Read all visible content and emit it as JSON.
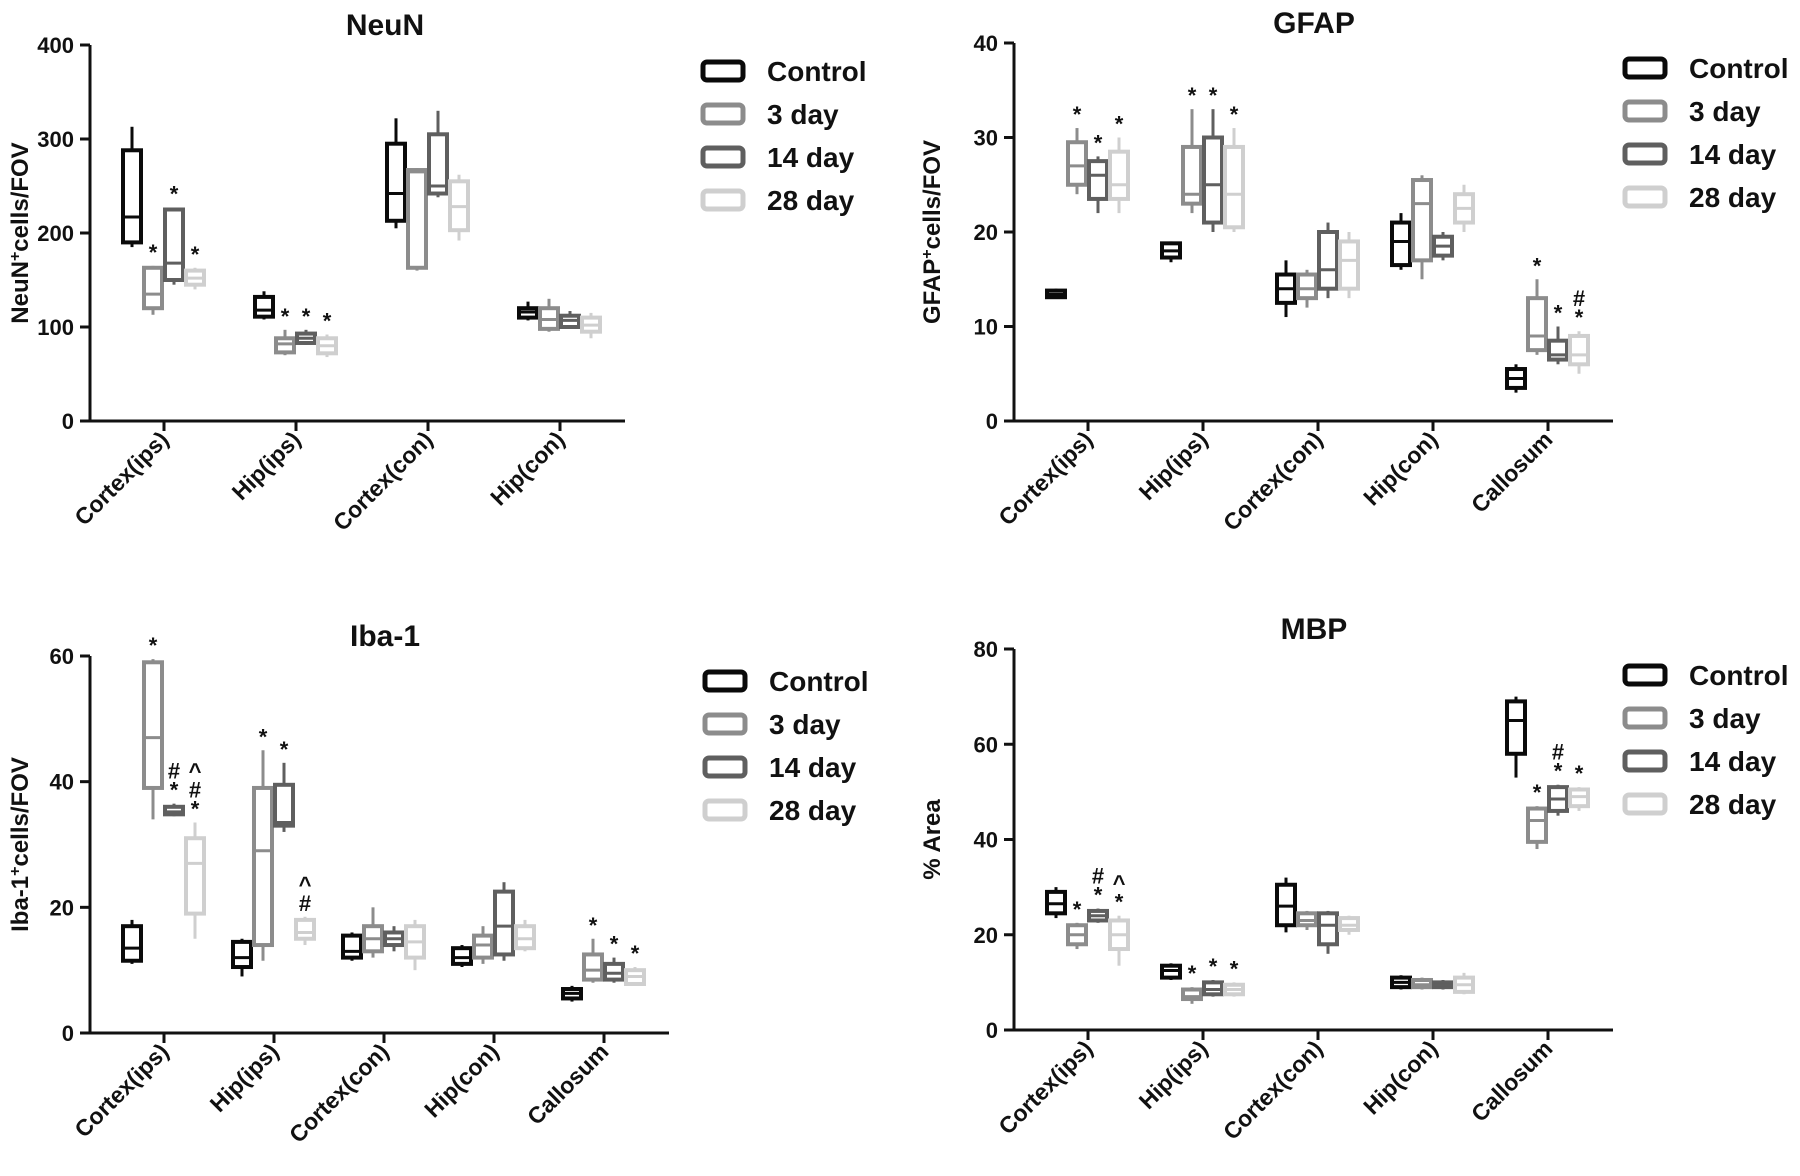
{
  "legend_labels": [
    "Control",
    "3 day",
    "14 day",
    "28 day"
  ],
  "series_colors": [
    "#0a0a0a",
    "#8c8c8c",
    "#5f5f5f",
    "#cfcfcf"
  ],
  "chart_data": [
    {
      "type": "box",
      "title": "NeuN",
      "ylabel_main": "NeuN",
      "ylabel_sup": "+",
      "ylabel_rest": "cells/FOV",
      "ylim": [
        0,
        400
      ],
      "yticks": [
        0,
        100,
        200,
        300,
        400
      ],
      "categories": [
        "Cortex(ips)",
        "Hip(ips)",
        "Cortex(con)",
        "Hip(con)"
      ],
      "legend_position": "top-right",
      "series": [
        {
          "name": "Control",
          "boxes": [
            {
              "min": 185,
              "q1": 190,
              "median": 217,
              "q3": 288,
              "max": 313,
              "annot": []
            },
            {
              "min": 108,
              "q1": 111,
              "median": 118,
              "q3": 132,
              "max": 138,
              "annot": []
            },
            {
              "min": 205,
              "q1": 213,
              "median": 242,
              "q3": 295,
              "max": 322,
              "annot": []
            },
            {
              "min": 107,
              "q1": 110,
              "median": 116,
              "q3": 120,
              "max": 127,
              "annot": []
            }
          ]
        },
        {
          "name": "3 day",
          "boxes": [
            {
              "min": 113,
              "q1": 120,
              "median": 135,
              "q3": 163,
              "max": 165,
              "annot": [
                "*"
              ]
            },
            {
              "min": 70,
              "q1": 73,
              "median": 82,
              "q3": 88,
              "max": 97,
              "annot": [
                "*"
              ]
            },
            {
              "min": 160,
              "q1": 163,
              "median": 265,
              "q3": 267,
              "max": 269,
              "annot": []
            },
            {
              "min": 95,
              "q1": 98,
              "median": 108,
              "q3": 120,
              "max": 130,
              "annot": []
            }
          ]
        },
        {
          "name": "14 day",
          "boxes": [
            {
              "min": 145,
              "q1": 150,
              "median": 168,
              "q3": 225,
              "max": 227,
              "annot": [
                "*"
              ]
            },
            {
              "min": 81,
              "q1": 83,
              "median": 88,
              "q3": 93,
              "max": 97,
              "annot": [
                "*"
              ]
            },
            {
              "min": 238,
              "q1": 242,
              "median": 250,
              "q3": 305,
              "max": 330,
              "annot": []
            },
            {
              "min": 98,
              "q1": 100,
              "median": 107,
              "q3": 112,
              "max": 117,
              "annot": []
            }
          ]
        },
        {
          "name": "28 day",
          "boxes": [
            {
              "min": 140,
              "q1": 145,
              "median": 152,
              "q3": 160,
              "max": 163,
              "annot": [
                "*"
              ]
            },
            {
              "min": 68,
              "q1": 72,
              "median": 80,
              "q3": 88,
              "max": 92,
              "annot": [
                "*"
              ]
            },
            {
              "min": 192,
              "q1": 203,
              "median": 228,
              "q3": 255,
              "max": 262,
              "annot": []
            },
            {
              "min": 88,
              "q1": 95,
              "median": 102,
              "q3": 110,
              "max": 115,
              "annot": []
            }
          ]
        }
      ]
    },
    {
      "type": "box",
      "title": "GFAP",
      "ylabel_main": "GFAP",
      "ylabel_sup": "+",
      "ylabel_rest": "cells/FOV",
      "ylim": [
        0,
        40
      ],
      "yticks": [
        0,
        10,
        20,
        30,
        40
      ],
      "categories": [
        "Cortex(ips)",
        "Hip(ips)",
        "Cortex(con)",
        "Hip(con)",
        "Callosum"
      ],
      "legend_position": "top-right",
      "series": [
        {
          "name": "Control",
          "boxes": [
            {
              "min": 13,
              "q1": 13.1,
              "median": 13.4,
              "q3": 13.8,
              "max": 14,
              "annot": []
            },
            {
              "min": 16.8,
              "q1": 17.3,
              "median": 18,
              "q3": 18.8,
              "max": 19,
              "annot": []
            },
            {
              "min": 11,
              "q1": 12.5,
              "median": 14,
              "q3": 15.5,
              "max": 17,
              "annot": []
            },
            {
              "min": 16,
              "q1": 16.5,
              "median": 19,
              "q3": 21,
              "max": 22,
              "annot": []
            },
            {
              "min": 3,
              "q1": 3.5,
              "median": 4.5,
              "q3": 5.5,
              "max": 6,
              "annot": []
            }
          ]
        },
        {
          "name": "3 day",
          "boxes": [
            {
              "min": 24,
              "q1": 25,
              "median": 27,
              "q3": 29.5,
              "max": 31,
              "annot": [
                "*"
              ]
            },
            {
              "min": 22,
              "q1": 23,
              "median": 24,
              "q3": 29,
              "max": 33,
              "annot": [
                "*"
              ]
            },
            {
              "min": 12,
              "q1": 13,
              "median": 14,
              "q3": 15.5,
              "max": 16,
              "annot": []
            },
            {
              "min": 15,
              "q1": 17,
              "median": 23,
              "q3": 25.5,
              "max": 26,
              "annot": []
            },
            {
              "min": 7,
              "q1": 7.5,
              "median": 9,
              "q3": 13,
              "max": 15,
              "annot": [
                "*"
              ]
            }
          ]
        },
        {
          "name": "14 day",
          "boxes": [
            {
              "min": 22,
              "q1": 23.5,
              "median": 26,
              "q3": 27.5,
              "max": 28,
              "annot": [
                "*"
              ]
            },
            {
              "min": 20,
              "q1": 21,
              "median": 25,
              "q3": 30,
              "max": 33,
              "annot": [
                "*"
              ]
            },
            {
              "min": 13,
              "q1": 14,
              "median": 16,
              "q3": 20,
              "max": 21,
              "annot": []
            },
            {
              "min": 17,
              "q1": 17.5,
              "median": 18.5,
              "q3": 19.5,
              "max": 20,
              "annot": []
            },
            {
              "min": 6,
              "q1": 6.5,
              "median": 7,
              "q3": 8.5,
              "max": 10,
              "annot": [
                "*"
              ]
            }
          ]
        },
        {
          "name": "28 day",
          "boxes": [
            {
              "min": 22,
              "q1": 23.5,
              "median": 25,
              "q3": 28.5,
              "max": 30,
              "annot": [
                "*"
              ]
            },
            {
              "min": 20,
              "q1": 20.5,
              "median": 24,
              "q3": 29,
              "max": 31,
              "annot": [
                "*"
              ]
            },
            {
              "min": 13,
              "q1": 14,
              "median": 17,
              "q3": 19,
              "max": 20,
              "annot": []
            },
            {
              "min": 20,
              "q1": 21,
              "median": 22.5,
              "q3": 24,
              "max": 25,
              "annot": []
            },
            {
              "min": 5,
              "q1": 6,
              "median": 7,
              "q3": 9,
              "max": 9.5,
              "annot": [
                "*",
                "#"
              ]
            }
          ]
        }
      ]
    },
    {
      "type": "box",
      "title": "Iba-1",
      "ylabel_main": "Iba-1",
      "ylabel_sup": "+",
      "ylabel_rest": "cells/FOV",
      "ylim": [
        0,
        60
      ],
      "yticks": [
        0,
        20,
        40,
        60
      ],
      "categories": [
        "Cortex(ips)",
        "Hip(ips)",
        "Cortex(con)",
        "Hip(con)",
        "Callosum"
      ],
      "legend_position": "top-right",
      "series": [
        {
          "name": "Control",
          "boxes": [
            {
              "min": 11,
              "q1": 11.5,
              "median": 13.5,
              "q3": 17,
              "max": 18,
              "annot": []
            },
            {
              "min": 9,
              "q1": 10.5,
              "median": 12,
              "q3": 14.5,
              "max": 15,
              "annot": []
            },
            {
              "min": 11.5,
              "q1": 12,
              "median": 13,
              "q3": 15.5,
              "max": 16,
              "annot": []
            },
            {
              "min": 10.5,
              "q1": 11,
              "median": 12,
              "q3": 13.5,
              "max": 14,
              "annot": []
            },
            {
              "min": 5,
              "q1": 5.5,
              "median": 6.3,
              "q3": 7,
              "max": 7.5,
              "annot": []
            }
          ]
        },
        {
          "name": "3 day",
          "boxes": [
            {
              "min": 34,
              "q1": 39,
              "median": 47,
              "q3": 59,
              "max": 59.5,
              "annot": [
                "*"
              ]
            },
            {
              "min": 11.5,
              "q1": 14,
              "median": 29,
              "q3": 39,
              "max": 45,
              "annot": [
                "*"
              ]
            },
            {
              "min": 12,
              "q1": 13,
              "median": 15,
              "q3": 17,
              "max": 20,
              "annot": []
            },
            {
              "min": 11,
              "q1": 12,
              "median": 14,
              "q3": 15.5,
              "max": 17,
              "annot": []
            },
            {
              "min": 8,
              "q1": 8.5,
              "median": 10,
              "q3": 12.5,
              "max": 15,
              "annot": [
                "*"
              ]
            }
          ]
        },
        {
          "name": "14 day",
          "boxes": [
            {
              "min": 34.5,
              "q1": 34.8,
              "median": 35.2,
              "q3": 36,
              "max": 36.5,
              "annot": [
                "*",
                "#"
              ]
            },
            {
              "min": 32,
              "q1": 33,
              "median": 33.5,
              "q3": 39.5,
              "max": 43,
              "annot": [
                "*"
              ]
            },
            {
              "min": 13,
              "q1": 14,
              "median": 15,
              "q3": 16,
              "max": 17,
              "annot": []
            },
            {
              "min": 11.5,
              "q1": 12.5,
              "median": 17,
              "q3": 22.5,
              "max": 24,
              "annot": []
            },
            {
              "min": 8,
              "q1": 8.5,
              "median": 9.5,
              "q3": 11,
              "max": 12,
              "annot": [
                "*"
              ]
            }
          ]
        },
        {
          "name": "28 day",
          "boxes": [
            {
              "min": 15,
              "q1": 19,
              "median": 27,
              "q3": 31,
              "max": 33.5,
              "annot": [
                "*",
                "#",
                "^"
              ]
            },
            {
              "min": 14,
              "q1": 15,
              "median": 16,
              "q3": 18,
              "max": 18.5,
              "annot": [
                "#",
                "^"
              ]
            },
            {
              "min": 10,
              "q1": 12,
              "median": 14.5,
              "q3": 17,
              "max": 18,
              "annot": []
            },
            {
              "min": 13,
              "q1": 13.5,
              "median": 15,
              "q3": 17,
              "max": 18,
              "annot": []
            },
            {
              "min": 7.5,
              "q1": 7.8,
              "median": 9,
              "q3": 10,
              "max": 10.5,
              "annot": [
                "*"
              ]
            }
          ]
        }
      ]
    },
    {
      "type": "box",
      "title": "MBP",
      "ylabel_main": "% Area",
      "ylabel_sup": "",
      "ylabel_rest": "",
      "ylim": [
        0,
        80
      ],
      "yticks": [
        0,
        20,
        40,
        60,
        80
      ],
      "categories": [
        "Cortex(ips)",
        "Hip(ips)",
        "Cortex(con)",
        "Hip(con)",
        "Callosum"
      ],
      "legend_position": "top-right",
      "series": [
        {
          "name": "Control",
          "boxes": [
            {
              "min": 23.5,
              "q1": 24.5,
              "median": 26.5,
              "q3": 29,
              "max": 30,
              "annot": []
            },
            {
              "min": 10.5,
              "q1": 11,
              "median": 12.5,
              "q3": 13.5,
              "max": 14,
              "annot": []
            },
            {
              "min": 20.5,
              "q1": 22,
              "median": 26,
              "q3": 30.5,
              "max": 32,
              "annot": []
            },
            {
              "min": 8.5,
              "q1": 9,
              "median": 10,
              "q3": 11,
              "max": 11.5,
              "annot": []
            },
            {
              "min": 53,
              "q1": 58,
              "median": 65,
              "q3": 69,
              "max": 70,
              "annot": []
            }
          ]
        },
        {
          "name": "3 day",
          "boxes": [
            {
              "min": 17,
              "q1": 18,
              "median": 20,
              "q3": 22,
              "max": 22.5,
              "annot": [
                "*"
              ]
            },
            {
              "min": 5.5,
              "q1": 6.5,
              "median": 7,
              "q3": 8.5,
              "max": 9,
              "annot": [
                "*"
              ]
            },
            {
              "min": 21,
              "q1": 22,
              "median": 23,
              "q3": 24.5,
              "max": 25,
              "annot": []
            },
            {
              "min": 8.5,
              "q1": 9,
              "median": 9.5,
              "q3": 10.5,
              "max": 11,
              "annot": []
            },
            {
              "min": 38,
              "q1": 39.5,
              "median": 44,
              "q3": 46.5,
              "max": 47,
              "annot": [
                "*"
              ]
            }
          ]
        },
        {
          "name": "14 day",
          "boxes": [
            {
              "min": 22.5,
              "q1": 23,
              "median": 24,
              "q3": 25,
              "max": 25.5,
              "annot": [
                "*",
                "#"
              ]
            },
            {
              "min": 7,
              "q1": 7.5,
              "median": 8.5,
              "q3": 10,
              "max": 10.5,
              "annot": [
                "*"
              ]
            },
            {
              "min": 16,
              "q1": 18,
              "median": 22,
              "q3": 24.5,
              "max": 25,
              "annot": []
            },
            {
              "min": 8.5,
              "q1": 9,
              "median": 9.5,
              "q3": 10,
              "max": 10.5,
              "annot": []
            },
            {
              "min": 45,
              "q1": 46,
              "median": 48.5,
              "q3": 51,
              "max": 51.5,
              "annot": [
                "*",
                "#"
              ]
            }
          ]
        },
        {
          "name": "28 day",
          "boxes": [
            {
              "min": 13.5,
              "q1": 17,
              "median": 20,
              "q3": 23,
              "max": 24,
              "annot": [
                "*",
                "^"
              ]
            },
            {
              "min": 7,
              "q1": 7.5,
              "median": 8.5,
              "q3": 9.5,
              "max": 10,
              "annot": [
                "*"
              ]
            },
            {
              "min": 20,
              "q1": 21,
              "median": 22,
              "q3": 23.5,
              "max": 24,
              "annot": []
            },
            {
              "min": 7.5,
              "q1": 8,
              "median": 9.5,
              "q3": 11,
              "max": 12,
              "annot": []
            },
            {
              "min": 46,
              "q1": 47,
              "median": 49,
              "q3": 50.5,
              "max": 51,
              "annot": [
                "*"
              ]
            }
          ]
        }
      ]
    }
  ]
}
